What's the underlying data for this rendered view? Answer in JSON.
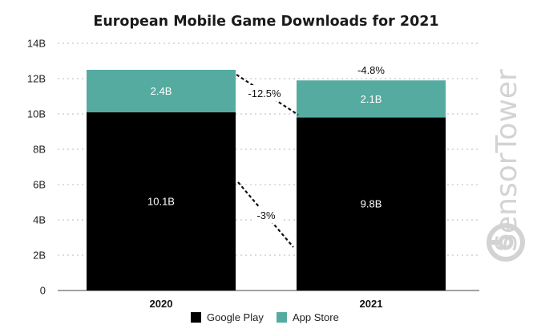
{
  "chart_data": {
    "type": "bar",
    "stacked": true,
    "title": "European Mobile Game Downloads for 2021",
    "categories": [
      "2020",
      "2021"
    ],
    "series": [
      {
        "name": "Google Play",
        "values": [
          10.1,
          9.8
        ],
        "labels": [
          "10.1B",
          "9.8B"
        ],
        "color": "#000000",
        "label_color": "#ffffff"
      },
      {
        "name": "App Store",
        "values": [
          2.4,
          2.1
        ],
        "labels": [
          "2.4B",
          "2.1B"
        ],
        "color": "#55aba0",
        "label_color": "#ffffff"
      }
    ],
    "yticks": [
      {
        "value": 0,
        "label": "0"
      },
      {
        "value": 2,
        "label": "2B"
      },
      {
        "value": 4,
        "label": "4B"
      },
      {
        "value": 6,
        "label": "6B"
      },
      {
        "value": 8,
        "label": "8B"
      },
      {
        "value": 10,
        "label": "10B"
      },
      {
        "value": 12,
        "label": "12B"
      },
      {
        "value": 14,
        "label": "14B"
      }
    ],
    "ylim": [
      0,
      14
    ],
    "grid": "dotted horizontal",
    "legend_position": "bottom-center",
    "annotations": {
      "total_change": "-4.8%",
      "app_store_change": "-12.5%",
      "google_play_change": "-3%"
    },
    "watermark": "SensorTower"
  }
}
